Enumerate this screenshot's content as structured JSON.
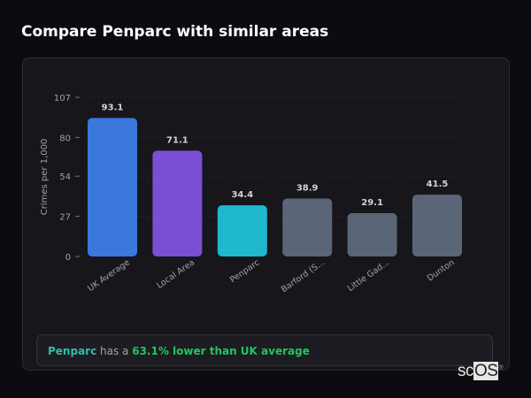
{
  "header": {
    "title": "Compare Penparc with similar areas"
  },
  "chart_data": {
    "type": "bar",
    "categories": [
      "UK Average",
      "Local Area",
      "Penparc",
      "Barford (S...",
      "Little Gad...",
      "Dunton"
    ],
    "values": [
      93.1,
      71.1,
      34.4,
      38.9,
      29.1,
      41.5
    ],
    "value_labels": [
      "93.1",
      "71.1",
      "34.4",
      "38.9",
      "29.1",
      "41.5"
    ],
    "colors": [
      "#3a78dc",
      "#7b4fd4",
      "#1fb8cf",
      "#5a6577",
      "#5a6577",
      "#5a6577"
    ],
    "ylabel": "Crimes per 1,000",
    "xlabel": "",
    "ylim": [
      0,
      107
    ],
    "yticks": [
      "0",
      "27",
      "54",
      "80",
      "107"
    ],
    "ytick_values": [
      0,
      27,
      54,
      80,
      107
    ],
    "grid": true
  },
  "footer": {
    "area": "Penparc",
    "middle": " has a ",
    "comparison": "63.1% lower than UK average"
  },
  "logo": {
    "text_a": "sc",
    "text_b": "OS",
    "mark": "®"
  }
}
